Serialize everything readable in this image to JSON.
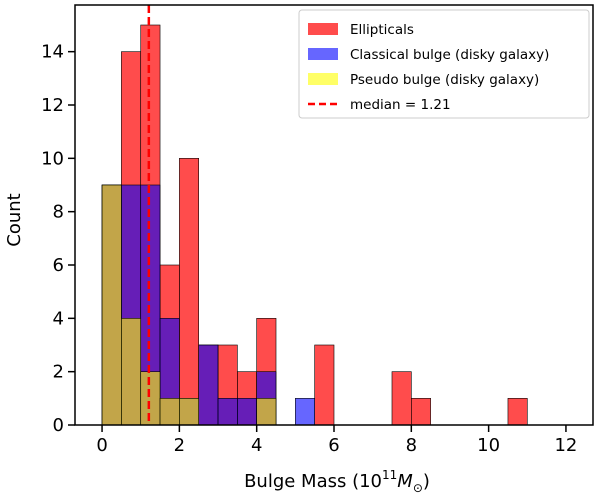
{
  "chart_data": {
    "type": "bar",
    "subtype": "overlaid-histogram",
    "xlabel": "Bulge Mass (10",
    "xlabel_sup": "11",
    "xlabel_math": "M",
    "xlabel_sub": "⊙",
    "xlabel_close": ")",
    "ylabel": "Count",
    "xlim": [
      -0.7,
      12.7
    ],
    "ylim": [
      0,
      15.75
    ],
    "xticks": [
      0,
      2,
      4,
      6,
      8,
      10,
      12
    ],
    "yticks": [
      0,
      2,
      4,
      6,
      8,
      10,
      12,
      14
    ],
    "bin_width": 0.5,
    "bin_starts": [
      0,
      0.5,
      1.0,
      1.5,
      2.0,
      2.5,
      3.0,
      3.5,
      4.0,
      4.5,
      5.0,
      5.5,
      6.0,
      6.5,
      7.0,
      7.5,
      8.0,
      8.5,
      9.0,
      9.5,
      10.0,
      10.5,
      11.0,
      11.5
    ],
    "series": [
      {
        "name": "Ellipticals",
        "color": "#ff0000",
        "alpha": 0.7,
        "values": [
          9,
          14,
          15,
          6,
          10,
          3,
          3,
          2,
          4,
          0,
          0,
          3,
          0,
          0,
          0,
          2,
          1,
          0,
          0,
          0,
          0,
          1,
          0,
          0
        ]
      },
      {
        "name": "Classical bulge (disky galaxy)",
        "color": "#0000ff",
        "alpha": 0.6,
        "values": [
          9,
          9,
          9,
          4,
          1,
          3,
          1,
          1,
          2,
          0,
          1,
          0,
          0,
          0,
          0,
          0,
          0,
          0,
          0,
          0,
          0,
          0,
          0,
          0
        ]
      },
      {
        "name": "Pseudo bulge (disky galaxy)",
        "color": "#ffff00",
        "alpha": 0.6,
        "values": [
          9,
          4,
          2,
          1,
          1,
          0,
          0,
          0,
          1,
          0,
          0,
          0,
          0,
          0,
          0,
          0,
          0,
          0,
          0,
          0,
          0,
          0,
          0,
          0
        ]
      }
    ],
    "median": {
      "value": 1.21,
      "label": "median = 1.21",
      "color": "#ff0000"
    },
    "legend_position": "top-right",
    "grid": false
  }
}
